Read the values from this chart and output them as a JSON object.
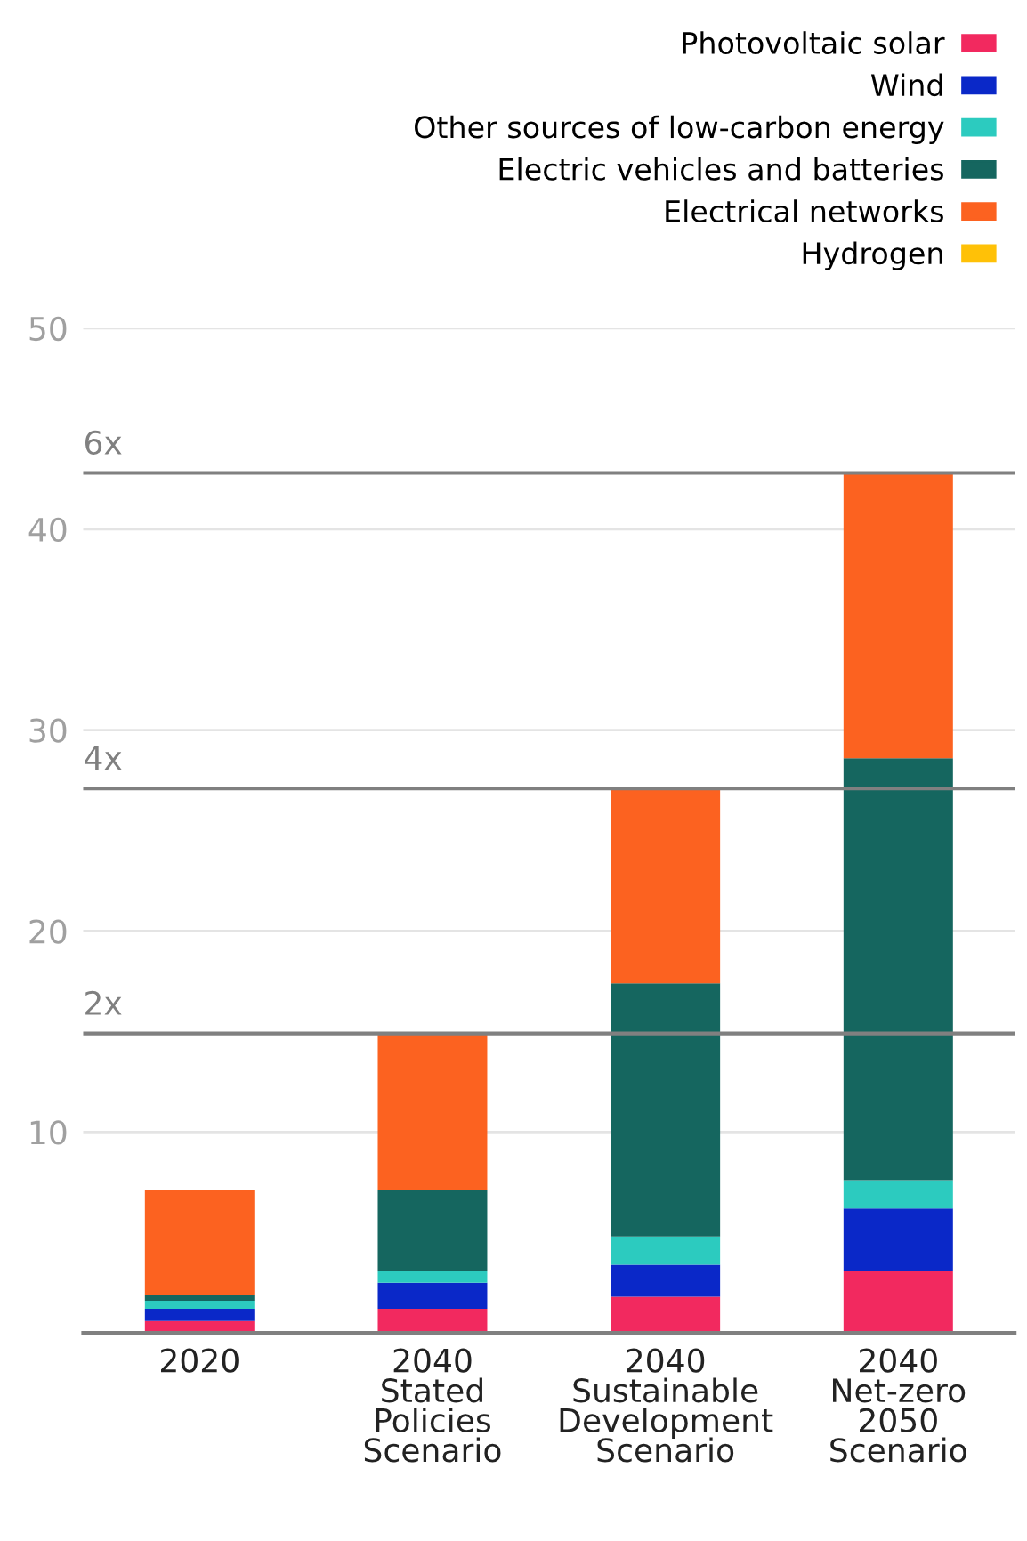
{
  "chart_data": {
    "type": "bar",
    "stacked": true,
    "categories": [
      "2020",
      "2040\nStated\nPolicies\nScenario",
      "2040\nSustainable\nDevelopment\nScenario",
      "2040\nNet-zero\n2050\nScenario"
    ],
    "series": [
      {
        "name": "Photovoltaic solar",
        "color": "#f2295f",
        "values": [
          0.6,
          1.2,
          1.8,
          3.1
        ]
      },
      {
        "name": "Wind",
        "color": "#0a28c8",
        "values": [
          0.6,
          1.3,
          1.6,
          3.1
        ]
      },
      {
        "name": "Other sources of low-carbon energy",
        "color": "#2ccbbf",
        "values": [
          0.4,
          0.6,
          1.4,
          1.4
        ]
      },
      {
        "name": "Electric vehicles and batteries",
        "color": "#15665f",
        "values": [
          0.3,
          4.0,
          12.6,
          21.0
        ]
      },
      {
        "name": "Electrical networks",
        "color": "#fc6220",
        "values": [
          5.2,
          7.8,
          9.7,
          14.2
        ]
      },
      {
        "name": "Hydrogen",
        "color": "#ffc107",
        "values": [
          0,
          0,
          0,
          0
        ]
      }
    ],
    "ylim": [
      0,
      50
    ],
    "yticks": [
      10,
      20,
      30,
      40,
      50
    ],
    "grid": "y",
    "legend": "top right",
    "ref_lines": [
      {
        "axis": "y",
        "value": 14.9,
        "label": "2x",
        "color": "#808080"
      },
      {
        "axis": "y",
        "value": 27.1,
        "label": "4x",
        "color": "#808080"
      },
      {
        "axis": "y",
        "value": 42.8,
        "label": "6x",
        "color": "#808080"
      }
    ]
  }
}
